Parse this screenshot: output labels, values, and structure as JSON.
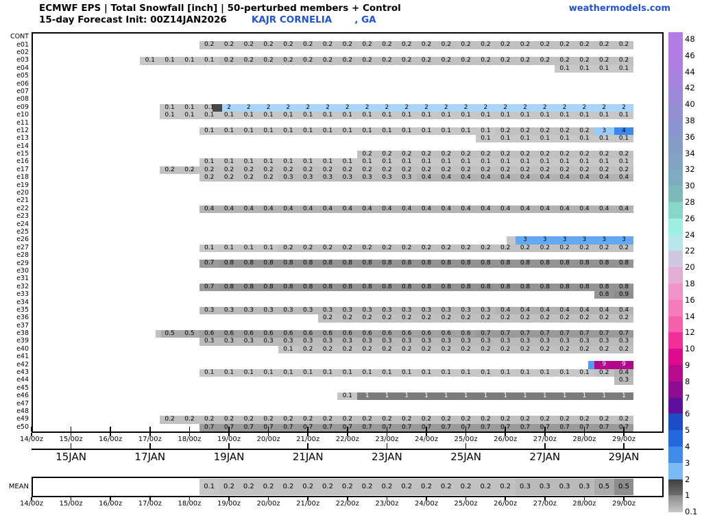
{
  "header": {
    "title": "ECMWF EPS | Total Snowfall [inch] | 50-perturbed members + Control",
    "init_label": "15-day Forecast Init: 00Z14JAN2026",
    "station": "KAJR CORNELIA",
    "station_suffix": ", GA",
    "brand": "weathermodels.com",
    "accent_color": "#2253d4"
  },
  "chart_data": {
    "type": "heatmap",
    "title": "ECMWF EPS | Total Snowfall [inch] | 50-perturbed members + Control",
    "subtitle": "15-day Forecast Init: 00Z14JAN2026 KAJR CORNELIA , GA",
    "units": "inch",
    "time_axis": {
      "start": "14/00z",
      "end": "29/00z",
      "step_hours": 12,
      "n_points": 31
    },
    "x_ticks": [
      "14/00z",
      "15/00z",
      "16/00z",
      "17/00z",
      "18/00z",
      "19/00z",
      "20/00z",
      "21/00z",
      "22/00z",
      "23/00z",
      "24/00z",
      "25/00z",
      "26/00z",
      "27/00z",
      "28/00z",
      "29/00z"
    ],
    "date_ticks": [
      "15JAN",
      "17JAN",
      "19JAN",
      "21JAN",
      "23JAN",
      "25JAN",
      "27JAN",
      "29JAN"
    ],
    "mean_label": "MEAN",
    "palette": {
      "g01": "#c7c7c7",
      "g02": "#c1c1c1",
      "g03": "#bababa",
      "g04": "#b3b3b3",
      "g05": "#aaaaaa",
      "g06": "#a1a1a1",
      "g07": "#9a9a9a",
      "g08": "#939393",
      "g09": "#8d8d8d",
      "w1": "#7b7b7b",
      "dark2": "#474747",
      "b2": "#a9d4fb",
      "b3l": "#9acafa",
      "b3": "#64a9f5",
      "b4": "#3d87f0",
      "b4l": "#4d9bf5",
      "m9": "#b2078b"
    },
    "white_text_values": [
      "1",
      "9"
    ],
    "rows": [
      {
        "label": "CONT"
      },
      {
        "label": "e01",
        "start": 9,
        "runs": [
          [
            "0.2",
            22,
            "g02"
          ]
        ]
      },
      {
        "label": "e02"
      },
      {
        "label": "e03",
        "start": 6,
        "runs": [
          [
            "0.1",
            4,
            "g01"
          ],
          [
            "0.2",
            21,
            "g02"
          ]
        ]
      },
      {
        "label": "e04",
        "start": 27,
        "runs": [
          [
            "0.1",
            4,
            "g01"
          ]
        ]
      },
      {
        "label": "e05"
      },
      {
        "label": "e06"
      },
      {
        "label": "e07"
      },
      {
        "label": "e08"
      },
      {
        "label": "e09",
        "start": 7,
        "runs": [
          [
            "0.1",
            3,
            "g01"
          ],
          [
            "2",
            21,
            "b2"
          ]
        ],
        "ov": [
          {
            "col": 9.15,
            "w": 0.5,
            "c": "dark2"
          }
        ]
      },
      {
        "label": "e10",
        "start": 7,
        "runs": [
          [
            "0.1",
            24,
            "g01"
          ]
        ]
      },
      {
        "label": "e11"
      },
      {
        "label": "e12",
        "start": 9,
        "runs": [
          [
            "0.1",
            15,
            "g01"
          ],
          [
            "0.2",
            5,
            "g02"
          ],
          [
            "3",
            1,
            "b3l"
          ],
          [
            "4",
            1,
            "b4"
          ]
        ]
      },
      {
        "label": "e13",
        "start": 23,
        "runs": [
          [
            "0.1",
            8,
            "g01"
          ]
        ]
      },
      {
        "label": "e14"
      },
      {
        "label": "e15",
        "start": 17,
        "runs": [
          [
            "0.2",
            14,
            "g02"
          ]
        ]
      },
      {
        "label": "e16",
        "start": 9,
        "runs": [
          [
            "0.1",
            22,
            "g01"
          ]
        ]
      },
      {
        "label": "e17",
        "start": 7,
        "runs": [
          [
            "0.2",
            24,
            "g02"
          ]
        ]
      },
      {
        "label": "e18",
        "start": 9,
        "runs": [
          [
            "0.2",
            4,
            "g02"
          ],
          [
            "0.3",
            7,
            "g03"
          ],
          [
            "0.4",
            11,
            "g04"
          ]
        ]
      },
      {
        "label": "e19"
      },
      {
        "label": "e20"
      },
      {
        "label": "e21"
      },
      {
        "label": "e22",
        "start": 9,
        "runs": [
          [
            "0.4",
            22,
            "g04"
          ]
        ]
      },
      {
        "label": "e23"
      },
      {
        "label": "e24"
      },
      {
        "label": "e25"
      },
      {
        "label": "e26",
        "start": 25,
        "runs": [
          [
            "3",
            6,
            "b3"
          ]
        ],
        "ov": [
          {
            "col": 24.05,
            "w": 0.45,
            "c": "g01"
          }
        ]
      },
      {
        "label": "e27",
        "start": 9,
        "runs": [
          [
            "0.1",
            4,
            "g01"
          ],
          [
            "0.2",
            18,
            "g02"
          ]
        ]
      },
      {
        "label": "e28"
      },
      {
        "label": "e29",
        "start": 9,
        "runs": [
          [
            "0.7",
            1,
            "g07"
          ],
          [
            "0.8",
            21,
            "g08"
          ]
        ]
      },
      {
        "label": "e30"
      },
      {
        "label": "e31"
      },
      {
        "label": "e32",
        "start": 9,
        "runs": [
          [
            "0.7",
            1,
            "g07"
          ],
          [
            "0.8",
            21,
            "g08"
          ]
        ]
      },
      {
        "label": "e33",
        "start": 29,
        "runs": [
          [
            "0.8",
            1,
            "g08"
          ],
          [
            "0.9",
            1,
            "g09"
          ]
        ]
      },
      {
        "label": "e34"
      },
      {
        "label": "e35",
        "start": 9,
        "runs": [
          [
            "0.3",
            15,
            "g03"
          ],
          [
            "0.4",
            7,
            "g04"
          ]
        ]
      },
      {
        "label": "e36",
        "start": 15,
        "runs": [
          [
            "0.2",
            16,
            "g02"
          ]
        ]
      },
      {
        "label": "e37"
      },
      {
        "label": "e38",
        "start": 7,
        "runs": [
          [
            "0.5",
            2,
            "g05"
          ],
          [
            "0.6",
            14,
            "g06"
          ],
          [
            "0.7",
            8,
            "g07"
          ]
        ],
        "ov": [
          {
            "col": 6.3,
            "w": 0.25,
            "c": "g02"
          }
        ]
      },
      {
        "label": "e39",
        "start": 9,
        "runs": [
          [
            "0.3",
            22,
            "g03"
          ]
        ]
      },
      {
        "label": "e40",
        "start": 13,
        "runs": [
          [
            "0.1",
            1,
            "g01"
          ],
          [
            "0.2",
            17,
            "g02"
          ]
        ]
      },
      {
        "label": "e41"
      },
      {
        "label": "e42",
        "start": 29,
        "runs": [
          [
            "9",
            2,
            "m9"
          ]
        ],
        "ov": [
          {
            "col": 28.2,
            "w": 0.32,
            "c": "b4l"
          }
        ]
      },
      {
        "label": "e43",
        "start": 9,
        "runs": [
          [
            "0.1",
            20,
            "g01"
          ],
          [
            "0.2",
            1,
            "g02"
          ],
          [
            "0.4",
            1,
            "g04"
          ]
        ]
      },
      {
        "label": "e44",
        "start": 30,
        "runs": [
          [
            "0.3",
            1,
            "g03"
          ]
        ]
      },
      {
        "label": "e45"
      },
      {
        "label": "e46",
        "start": 16,
        "runs": [
          [
            "0.1",
            1,
            "g01"
          ],
          [
            "1",
            14,
            "w1"
          ]
        ]
      },
      {
        "label": "e47"
      },
      {
        "label": "e48"
      },
      {
        "label": "e49",
        "start": 7,
        "runs": [
          [
            "0.2",
            24,
            "g02"
          ]
        ]
      },
      {
        "label": "e50",
        "start": 9,
        "runs": [
          [
            "0.7",
            22,
            "g07"
          ]
        ]
      }
    ],
    "mean": {
      "label": "MEAN",
      "start": 9,
      "runs": [
        [
          "0.1",
          1,
          "g01"
        ],
        [
          "0.2",
          15,
          "g02"
        ],
        [
          "0.3",
          4,
          "g03"
        ],
        [
          "0.5",
          1,
          "g05"
        ],
        [
          "0.5",
          1,
          "g09"
        ]
      ]
    },
    "colorbar": {
      "labels": [
        "48",
        "46",
        "44",
        "42",
        "40",
        "38",
        "36",
        "34",
        "32",
        "30",
        "28",
        "26",
        "24",
        "22",
        "20",
        "18",
        "16",
        "14",
        "12",
        "10",
        "9",
        "8",
        "7",
        "6",
        "5",
        "4",
        "3",
        "2",
        "1",
        "0.1"
      ],
      "segment_colors": [
        "#b47ae6",
        "#ae7ee3",
        "#a684df",
        "#9d89da",
        "#938fd5",
        "#8b95cf",
        "#859cc9",
        "#81a4c3",
        "#7dacbe",
        "#7db8bb",
        "#85d8c7",
        "#9df0e1",
        "#b9e6ea",
        "#cfc8e3",
        "#e3aed6",
        "#f094c8",
        "#f67bbb",
        "#f65fab",
        "#f22f98",
        "#de0c8c",
        "#b80a8d",
        "#8e0c92",
        "#5e0f9b",
        "#1b4dc6",
        "#2368dc",
        "#3f8cee",
        "#7cbaf7",
        "linear-gradient(#3f3f3f,#707070)",
        "linear-gradient(#8a8a8a,#c9c9c9)"
      ]
    }
  }
}
